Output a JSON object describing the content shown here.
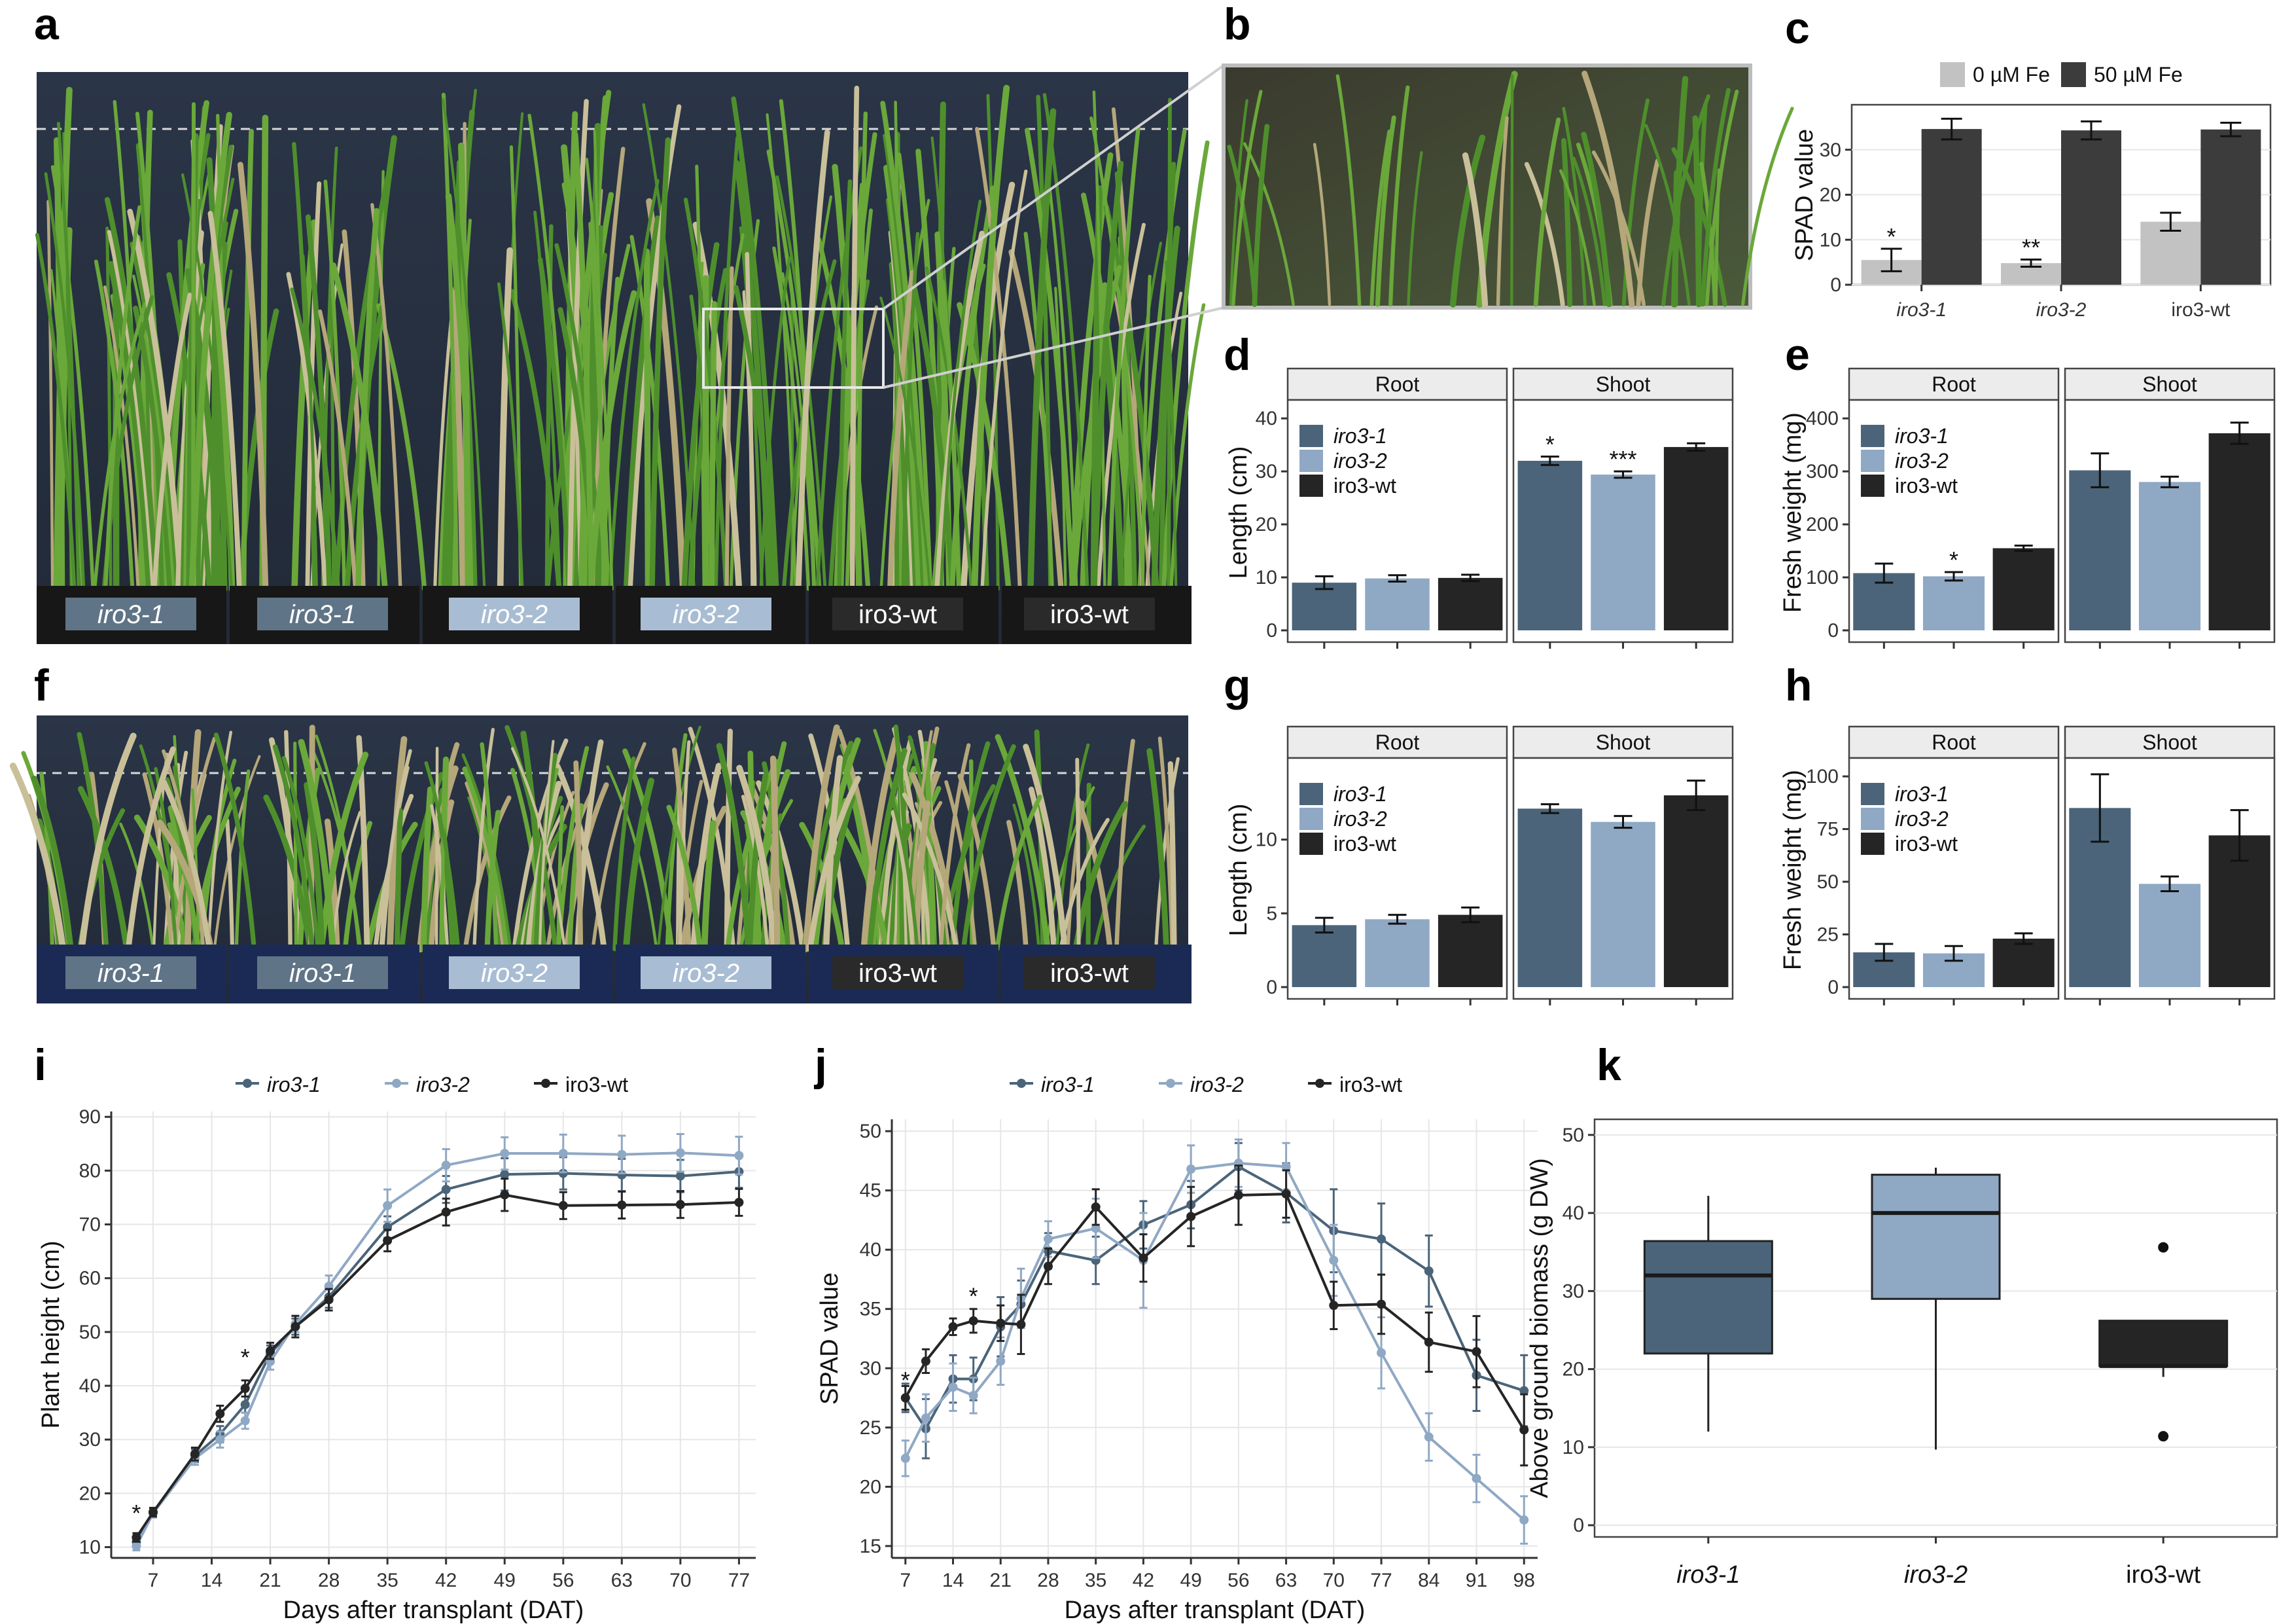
{
  "panel_labels": [
    "a",
    "b",
    "c",
    "d",
    "e",
    "f",
    "g",
    "h",
    "i",
    "j",
    "k"
  ],
  "colors": {
    "iro3_1": "#4b6479",
    "iro3_2": "#8fa8c4",
    "iro3_wt": "#252525",
    "fe0": "#c2c2c2",
    "fe50": "#3c3c3c"
  },
  "photo_a": {
    "pot_labels": [
      "iro3-1",
      "iro3-1",
      "iro3-2",
      "iro3-2",
      "iro3-wt",
      "iro3-wt"
    ]
  },
  "photo_f": {
    "pot_labels": [
      "iro3-1",
      "iro3-1",
      "iro3-2",
      "iro3-2",
      "iro3-wt",
      "iro3-wt"
    ]
  },
  "chart_data": [
    {
      "id": "c",
      "type": "bar",
      "categories": [
        "iro3-1",
        "iro3-2",
        "iro3-wt"
      ],
      "series": [
        {
          "name": "0 µM Fe",
          "values": [
            5.5,
            4.8,
            14.0
          ],
          "err": [
            2.5,
            0.8,
            2.0
          ]
        },
        {
          "name": "50 µM Fe",
          "values": [
            34.6,
            34.3,
            34.5
          ],
          "err": [
            2.3,
            2.0,
            1.5
          ]
        }
      ],
      "ylabel": "SPAD value",
      "ylim": [
        0,
        40
      ],
      "yticks": [
        0,
        10,
        20,
        30
      ],
      "annotations": [
        "*",
        "**",
        ""
      ],
      "legend": [
        "0 µM Fe",
        "50 µM Fe"
      ]
    },
    {
      "id": "d",
      "type": "bar",
      "facets": [
        "Root",
        "Shoot"
      ],
      "categories": [
        "iro3-1",
        "iro3-2",
        "iro3-wt"
      ],
      "values": {
        "Root": [
          9.0,
          9.8,
          9.9
        ],
        "Shoot": [
          32.0,
          29.4,
          34.6
        ]
      },
      "err": {
        "Root": [
          1.2,
          0.6,
          0.6
        ],
        "Shoot": [
          0.8,
          0.6,
          0.7
        ]
      },
      "annotations": {
        "Root": [
          "",
          "",
          ""
        ],
        "Shoot": [
          "*",
          "***",
          ""
        ]
      },
      "ylabel": "Length (cm)",
      "ylim": [
        0,
        42
      ],
      "yticks": [
        0,
        10,
        20,
        30,
        40
      ]
    },
    {
      "id": "e",
      "type": "bar",
      "facets": [
        "Root",
        "Shoot"
      ],
      "categories": [
        "iro3-1",
        "iro3-2",
        "iro3-wt"
      ],
      "values": {
        "Root": [
          108,
          102,
          155
        ],
        "Shoot": [
          302,
          280,
          372
        ]
      },
      "err": {
        "Root": [
          18,
          8,
          5
        ],
        "Shoot": [
          32,
          10,
          20
        ]
      },
      "annotations": {
        "Root": [
          "",
          "*",
          ""
        ],
        "Shoot": [
          "",
          "",
          ""
        ]
      },
      "ylabel": "Fresh weight (mg)",
      "ylim": [
        0,
        420
      ],
      "yticks": [
        0,
        100,
        200,
        300,
        400
      ]
    },
    {
      "id": "g",
      "type": "bar",
      "facets": [
        "Root",
        "Shoot"
      ],
      "categories": [
        "iro3-1",
        "iro3-2",
        "iro3-wt"
      ],
      "values": {
        "Root": [
          4.2,
          4.6,
          4.9
        ],
        "Shoot": [
          12.1,
          11.2,
          13.0
        ]
      },
      "err": {
        "Root": [
          0.5,
          0.3,
          0.5
        ],
        "Shoot": [
          0.3,
          0.4,
          1.0
        ]
      },
      "annotations": {
        "Root": [
          "",
          "",
          ""
        ],
        "Shoot": [
          "",
          "",
          ""
        ]
      },
      "ylabel": "Length (cm)",
      "ylim": [
        0,
        15
      ],
      "yticks": [
        0,
        5,
        10
      ]
    },
    {
      "id": "h",
      "type": "bar",
      "facets": [
        "Root",
        "Shoot"
      ],
      "categories": [
        "iro3-1",
        "iro3-2",
        "iro3-wt"
      ],
      "values": {
        "Root": [
          16.5,
          16,
          23
        ],
        "Shoot": [
          85,
          49,
          72
        ]
      },
      "err": {
        "Root": [
          4,
          3.5,
          2.5
        ],
        "Shoot": [
          16,
          3.5,
          12
        ]
      },
      "annotations": {
        "Root": [
          "",
          "",
          ""
        ],
        "Shoot": [
          "",
          "",
          ""
        ]
      },
      "ylabel": "Fresh weight (mg)",
      "ylim": [
        0,
        105
      ],
      "yticks": [
        0,
        25,
        50,
        75,
        100
      ]
    },
    {
      "id": "i",
      "type": "line",
      "xlabel": "Days after transplant (DAT)",
      "ylabel": "Plant height (cm)",
      "xlim": [
        2,
        79
      ],
      "ylim": [
        8,
        91
      ],
      "xticks": [
        7,
        14,
        21,
        28,
        35,
        42,
        49,
        56,
        63,
        70,
        77
      ],
      "yticks": [
        10,
        20,
        30,
        40,
        50,
        60,
        70,
        80,
        90
      ],
      "series": [
        {
          "name": "iro3-1",
          "x": [
            5,
            7,
            12,
            15,
            18,
            21,
            24,
            28,
            35,
            42,
            49,
            56,
            63,
            70,
            77
          ],
          "y": [
            11,
            16.5,
            27,
            31,
            36.5,
            46,
            51,
            56.5,
            69.5,
            76.5,
            79.3,
            79.5,
            79.2,
            79,
            79.8
          ],
          "err": [
            0.8,
            0.8,
            1.2,
            1.5,
            1.5,
            1.5,
            1.5,
            2,
            2,
            2.5,
            3,
            3,
            3,
            3,
            3
          ]
        },
        {
          "name": "iro3-2",
          "x": [
            5,
            7,
            12,
            15,
            18,
            21,
            24,
            28,
            35,
            42,
            49,
            56,
            63,
            70,
            77
          ],
          "y": [
            10.2,
            16.3,
            26.5,
            30,
            33.5,
            44.5,
            51.5,
            58.5,
            73.5,
            81,
            83.2,
            83.2,
            83,
            83.3,
            82.8
          ],
          "err": [
            0.8,
            0.8,
            1.2,
            1.5,
            1.5,
            1.5,
            1.5,
            2,
            3,
            3,
            3,
            3.5,
            3.5,
            3.5,
            3.5
          ]
        },
        {
          "name": "iro3-wt",
          "x": [
            5,
            7,
            12,
            15,
            18,
            21,
            24,
            28,
            35,
            42,
            49,
            56,
            63,
            70,
            77
          ],
          "y": [
            11.8,
            16.5,
            27.3,
            34.8,
            39.5,
            46.5,
            51,
            56,
            67,
            72.3,
            75.5,
            73.5,
            73.6,
            73.7,
            74.1
          ],
          "err": [
            0.8,
            0.8,
            1.2,
            1.5,
            1.5,
            1.5,
            2,
            2,
            2,
            2.5,
            3,
            2.5,
            2.5,
            2.5,
            2.5
          ]
        }
      ],
      "significance": [
        {
          "x": 5,
          "y": 17,
          "label": "*"
        },
        {
          "x": 18,
          "y": 46,
          "label": "*"
        }
      ],
      "legend": [
        "iro3-1",
        "iro3-2",
        "iro3-wt"
      ]
    },
    {
      "id": "j",
      "type": "line",
      "xlabel": "Days after transplant (DAT)",
      "ylabel": "SPAD value",
      "xlim": [
        5,
        100
      ],
      "ylim": [
        14,
        51
      ],
      "xticks": [
        7,
        14,
        21,
        28,
        35,
        42,
        49,
        56,
        63,
        70,
        77,
        84,
        91,
        98
      ],
      "yticks": [
        15,
        20,
        25,
        30,
        35,
        40,
        45,
        50
      ],
      "series": [
        {
          "name": "iro3-1",
          "x": [
            7,
            10,
            14,
            17,
            21,
            24,
            28,
            35,
            42,
            49,
            56,
            63,
            70,
            77,
            84,
            91,
            98
          ],
          "y": [
            27.5,
            24.9,
            29.1,
            29.1,
            33.5,
            35.4,
            39.9,
            39.1,
            42.1,
            43.8,
            47.0,
            44.8,
            41.6,
            40.9,
            38.2,
            29.4,
            28.1
          ],
          "err": [
            1.2,
            2.5,
            2.0,
            1.8,
            2.5,
            2.0,
            1.5,
            2.0,
            2.0,
            2.0,
            2.0,
            2.5,
            3.5,
            3.0,
            3.0,
            3.0,
            3.0
          ]
        },
        {
          "name": "iro3-2",
          "x": [
            7,
            10,
            14,
            17,
            21,
            24,
            28,
            35,
            42,
            49,
            56,
            63,
            70,
            77,
            84,
            91,
            98
          ],
          "y": [
            22.4,
            25.8,
            28.4,
            27.7,
            30.6,
            35.9,
            40.9,
            41.8,
            39.1,
            46.8,
            47.3,
            47.0,
            39.1,
            31.3,
            24.2,
            20.7,
            17.2
          ],
          "err": [
            1.5,
            2.0,
            2.0,
            1.5,
            2.0,
            2.5,
            1.5,
            2.5,
            4.0,
            2.0,
            2.0,
            2.0,
            3.0,
            3.0,
            2.0,
            2.0,
            2.0
          ]
        },
        {
          "name": "iro3-wt",
          "x": [
            7,
            10,
            14,
            17,
            21,
            24,
            28,
            35,
            42,
            49,
            56,
            63,
            70,
            77,
            84,
            91,
            98
          ],
          "y": [
            27.5,
            30.6,
            33.5,
            34.0,
            33.8,
            33.7,
            38.6,
            43.6,
            39.3,
            42.8,
            44.6,
            44.7,
            35.3,
            35.4,
            32.2,
            31.4,
            24.8
          ],
          "err": [
            1.0,
            1.0,
            0.7,
            1.0,
            1.5,
            2.5,
            1.5,
            1.5,
            2.0,
            2.5,
            2.5,
            2.0,
            2.0,
            2.5,
            2.5,
            3.0,
            3.0
          ]
        }
      ],
      "significance": [
        {
          "x": 7,
          "y": 29.3,
          "label": "*"
        },
        {
          "x": 17,
          "y": 36.4,
          "label": "*"
        }
      ],
      "legend": [
        "iro3-1",
        "iro3-2",
        "iro3-wt"
      ]
    },
    {
      "id": "k",
      "type": "box",
      "categories": [
        "iro3-1",
        "iro3-2",
        "iro3-wt"
      ],
      "boxes": [
        {
          "min": 12,
          "q1": 22,
          "median": 32,
          "q3": 36.4,
          "max": 42.2,
          "outliers": []
        },
        {
          "min": 9.7,
          "q1": 29,
          "median": 40,
          "q3": 44.9,
          "max": 45.8,
          "outliers": []
        },
        {
          "min": 19,
          "q1": 20.4,
          "median": 20.4,
          "q3": 26.2,
          "max": 26.2,
          "outliers": [
            35.6,
            11.4
          ]
        }
      ],
      "ylabel": "Above ground biomass (g DW)",
      "ylim": [
        -1.5,
        52
      ],
      "yticks": [
        0,
        10,
        20,
        30,
        40,
        50
      ]
    }
  ]
}
